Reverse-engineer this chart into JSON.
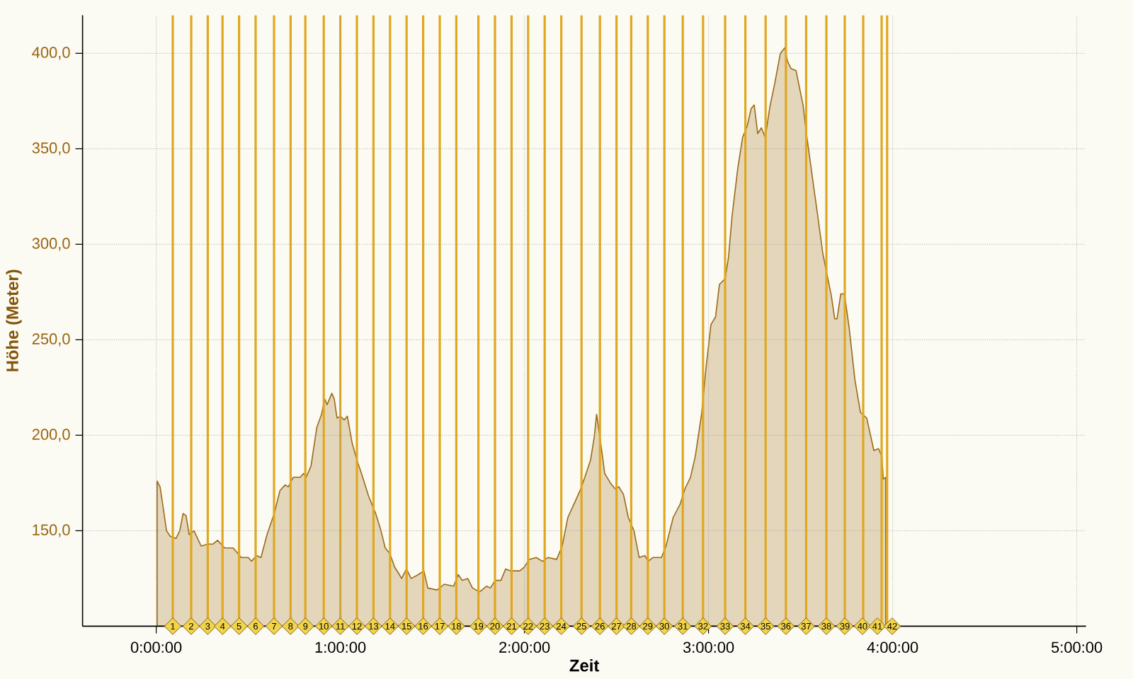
{
  "chart_data": {
    "type": "area",
    "xlabel": "Zeit",
    "ylabel": "Höhe (Meter)",
    "color": "#9c6a14",
    "x": [
      0.005,
      0.021,
      0.038,
      0.056,
      0.077,
      0.108,
      0.128,
      0.146,
      0.162,
      0.179,
      0.205,
      0.244,
      0.282,
      0.308,
      0.333,
      0.372,
      0.418,
      0.462,
      0.5,
      0.518,
      0.544,
      0.569,
      0.602,
      0.641,
      0.672,
      0.7,
      0.718,
      0.744,
      0.782,
      0.8,
      0.815,
      0.841,
      0.872,
      0.898,
      0.915,
      0.928,
      0.941,
      0.954,
      0.967,
      0.982,
      1.0,
      1.021,
      1.038,
      1.064,
      1.09,
      1.115,
      1.154,
      1.192,
      1.218,
      1.244,
      1.269,
      1.295,
      1.321,
      1.333,
      1.359,
      1.385,
      1.423,
      1.454,
      1.475,
      1.525,
      1.564,
      1.615,
      1.641,
      1.662,
      1.692,
      1.718,
      1.756,
      1.795,
      1.815,
      1.841,
      1.872,
      1.898,
      1.923,
      1.975,
      2.0,
      2.025,
      2.064,
      2.098,
      2.128,
      2.175,
      2.205,
      2.236,
      2.269,
      2.302,
      2.328,
      2.359,
      2.379,
      2.392,
      2.41,
      2.436,
      2.467,
      2.492,
      2.513,
      2.538,
      2.564,
      2.595,
      2.623,
      2.654,
      2.672,
      2.698,
      2.744,
      2.769,
      2.808,
      2.846,
      2.872,
      2.902,
      2.928,
      2.962,
      2.987,
      3.013,
      3.038,
      3.059,
      3.09,
      3.108,
      3.128,
      3.159,
      3.185,
      3.21,
      3.231,
      3.248,
      3.267,
      3.287,
      3.308,
      3.333,
      3.359,
      3.39,
      3.415,
      3.428,
      3.448,
      3.475,
      3.513,
      3.533,
      3.564,
      3.59,
      3.621,
      3.646,
      3.667,
      3.685,
      3.698,
      3.718,
      3.738,
      3.764,
      3.795,
      3.825,
      3.859,
      3.898,
      3.923,
      3.941,
      3.949,
      3.962
    ],
    "values": [
      176,
      173,
      162,
      150,
      147,
      146,
      150,
      159,
      158,
      148,
      150,
      142,
      143,
      143,
      145,
      141,
      141,
      136,
      136,
      134,
      137,
      136,
      148,
      159,
      171,
      174,
      173,
      178,
      178,
      180,
      178,
      184,
      204,
      211,
      219,
      216,
      219,
      222,
      219,
      209,
      210,
      208,
      210,
      196,
      187,
      180,
      168,
      159,
      151,
      141,
      138,
      131,
      127,
      125,
      130,
      125,
      127,
      129,
      120,
      119,
      122,
      121,
      127,
      124,
      125,
      120,
      118,
      121,
      120,
      124,
      124,
      130,
      129,
      129,
      131,
      135,
      136,
      134,
      136,
      135,
      142,
      157,
      164,
      171,
      178,
      187,
      199,
      211,
      199,
      180,
      175,
      172,
      173,
      169,
      157,
      150,
      136,
      137,
      134,
      136,
      136,
      142,
      157,
      164,
      172,
      178,
      189,
      211,
      236,
      258,
      262,
      279,
      282,
      293,
      315,
      340,
      356,
      362,
      371,
      373,
      358,
      361,
      356,
      372,
      384,
      400,
      403,
      396,
      392,
      391,
      373,
      357,
      335,
      317,
      295,
      283,
      273,
      261,
      261,
      274,
      274,
      256,
      229,
      212,
      209,
      192,
      193,
      189,
      177,
      178
    ],
    "xlim": [
      -0.4,
      5.05
    ],
    "ylim": [
      100,
      420
    ],
    "xticks": [
      {
        "value": 0,
        "label": "0:00:00"
      },
      {
        "value": 1,
        "label": "1:00:00"
      },
      {
        "value": 2,
        "label": "2:00:00"
      },
      {
        "value": 3,
        "label": "3:00:00"
      },
      {
        "value": 4,
        "label": "4:00:00"
      },
      {
        "value": 5,
        "label": "5:00:00"
      }
    ],
    "yticks": [
      {
        "value": 150,
        "label": "150,0"
      },
      {
        "value": 200,
        "label": "200,0"
      },
      {
        "value": 250,
        "label": "250,0"
      },
      {
        "value": 300,
        "label": "300,0"
      },
      {
        "value": 350,
        "label": "350,0"
      },
      {
        "value": 400,
        "label": "400,0"
      }
    ],
    "grid": true,
    "ref_lines": [
      {
        "axis": "x",
        "value": 0.09,
        "color": "#e0a820"
      },
      {
        "axis": "x",
        "value": 0.19,
        "color": "#e0a820"
      },
      {
        "axis": "x",
        "value": 0.28,
        "color": "#e0a820"
      },
      {
        "axis": "x",
        "value": 0.36,
        "color": "#e0a820"
      },
      {
        "axis": "x",
        "value": 0.45,
        "color": "#e0a820"
      },
      {
        "axis": "x",
        "value": 0.54,
        "color": "#e0a820"
      },
      {
        "axis": "x",
        "value": 0.64,
        "color": "#e0a820"
      },
      {
        "axis": "x",
        "value": 0.73,
        "color": "#e0a820"
      },
      {
        "axis": "x",
        "value": 0.81,
        "color": "#e0a820"
      },
      {
        "axis": "x",
        "value": 0.91,
        "color": "#e0a820"
      },
      {
        "axis": "x",
        "value": 1.0,
        "color": "#e0a820"
      },
      {
        "axis": "x",
        "value": 1.09,
        "color": "#e0a820"
      },
      {
        "axis": "x",
        "value": 1.18,
        "color": "#e0a820"
      },
      {
        "axis": "x",
        "value": 1.27,
        "color": "#e0a820"
      },
      {
        "axis": "x",
        "value": 1.36,
        "color": "#e0a820"
      },
      {
        "axis": "x",
        "value": 1.45,
        "color": "#e0a820"
      },
      {
        "axis": "x",
        "value": 1.54,
        "color": "#e0a820"
      },
      {
        "axis": "x",
        "value": 1.63,
        "color": "#e0a820"
      },
      {
        "axis": "x",
        "value": 1.75,
        "color": "#e0a820"
      },
      {
        "axis": "x",
        "value": 1.84,
        "color": "#e0a820"
      },
      {
        "axis": "x",
        "value": 1.93,
        "color": "#e0a820"
      },
      {
        "axis": "x",
        "value": 2.02,
        "color": "#e0a820"
      },
      {
        "axis": "x",
        "value": 2.11,
        "color": "#e0a820"
      },
      {
        "axis": "x",
        "value": 2.2,
        "color": "#e0a820"
      },
      {
        "axis": "x",
        "value": 2.31,
        "color": "#e0a820"
      },
      {
        "axis": "x",
        "value": 2.41,
        "color": "#e0a820"
      },
      {
        "axis": "x",
        "value": 2.5,
        "color": "#e0a820"
      },
      {
        "axis": "x",
        "value": 2.58,
        "color": "#e0a820"
      },
      {
        "axis": "x",
        "value": 2.67,
        "color": "#e0a820"
      },
      {
        "axis": "x",
        "value": 2.76,
        "color": "#e0a820"
      },
      {
        "axis": "x",
        "value": 2.86,
        "color": "#e0a820"
      },
      {
        "axis": "x",
        "value": 2.97,
        "color": "#e0a820"
      },
      {
        "axis": "x",
        "value": 3.09,
        "color": "#e0a820"
      },
      {
        "axis": "x",
        "value": 3.2,
        "color": "#e0a820"
      },
      {
        "axis": "x",
        "value": 3.31,
        "color": "#e0a820"
      },
      {
        "axis": "x",
        "value": 3.42,
        "color": "#e0a820"
      },
      {
        "axis": "x",
        "value": 3.53,
        "color": "#e0a820"
      },
      {
        "axis": "x",
        "value": 3.64,
        "color": "#e0a820"
      },
      {
        "axis": "x",
        "value": 3.74,
        "color": "#e0a820"
      },
      {
        "axis": "x",
        "value": 3.84,
        "color": "#e0a820"
      },
      {
        "axis": "x",
        "value": 3.94,
        "color": "#e0a820"
      },
      {
        "axis": "x",
        "value": 3.97,
        "color": "#e0a820"
      }
    ],
    "annotations": [
      {
        "text": "1",
        "x": 0.09,
        "y": 100
      },
      {
        "text": "2",
        "x": 0.19,
        "y": 100
      },
      {
        "text": "3",
        "x": 0.28,
        "y": 100
      },
      {
        "text": "4",
        "x": 0.36,
        "y": 100
      },
      {
        "text": "5",
        "x": 0.45,
        "y": 100
      },
      {
        "text": "6",
        "x": 0.54,
        "y": 100
      },
      {
        "text": "7",
        "x": 0.64,
        "y": 100
      },
      {
        "text": "8",
        "x": 0.73,
        "y": 100
      },
      {
        "text": "9",
        "x": 0.81,
        "y": 100
      },
      {
        "text": "10",
        "x": 0.91,
        "y": 100
      },
      {
        "text": "11",
        "x": 1.0,
        "y": 100
      },
      {
        "text": "12",
        "x": 1.09,
        "y": 100
      },
      {
        "text": "13",
        "x": 1.18,
        "y": 100
      },
      {
        "text": "14",
        "x": 1.27,
        "y": 100
      },
      {
        "text": "15",
        "x": 1.36,
        "y": 100
      },
      {
        "text": "16",
        "x": 1.45,
        "y": 100
      },
      {
        "text": "17",
        "x": 1.54,
        "y": 100
      },
      {
        "text": "18",
        "x": 1.63,
        "y": 100
      },
      {
        "text": "19",
        "x": 1.75,
        "y": 100
      },
      {
        "text": "20",
        "x": 1.84,
        "y": 100
      },
      {
        "text": "21",
        "x": 1.93,
        "y": 100
      },
      {
        "text": "22",
        "x": 2.02,
        "y": 100
      },
      {
        "text": "23",
        "x": 2.11,
        "y": 100
      },
      {
        "text": "24",
        "x": 2.2,
        "y": 100
      },
      {
        "text": "25",
        "x": 2.31,
        "y": 100
      },
      {
        "text": "26",
        "x": 2.41,
        "y": 100
      },
      {
        "text": "27",
        "x": 2.5,
        "y": 100
      },
      {
        "text": "28",
        "x": 2.58,
        "y": 100
      },
      {
        "text": "29",
        "x": 2.67,
        "y": 100
      },
      {
        "text": "30",
        "x": 2.76,
        "y": 100
      },
      {
        "text": "31",
        "x": 2.86,
        "y": 100
      },
      {
        "text": "32",
        "x": 2.97,
        "y": 100
      },
      {
        "text": "33",
        "x": 3.09,
        "y": 100
      },
      {
        "text": "34",
        "x": 3.2,
        "y": 100
      },
      {
        "text": "35",
        "x": 3.31,
        "y": 100
      },
      {
        "text": "36",
        "x": 3.42,
        "y": 100
      },
      {
        "text": "37",
        "x": 3.53,
        "y": 100
      },
      {
        "text": "38",
        "x": 3.64,
        "y": 100
      },
      {
        "text": "39",
        "x": 3.74,
        "y": 100
      },
      {
        "text": "40",
        "x": 3.84,
        "y": 100
      },
      {
        "text": "41",
        "x": 3.94,
        "y": 100
      },
      {
        "text": "42",
        "x": 3.97,
        "y": 100
      }
    ]
  }
}
